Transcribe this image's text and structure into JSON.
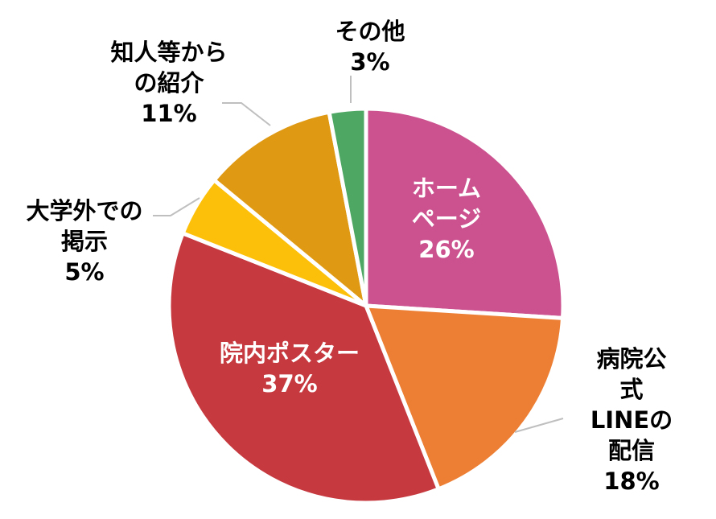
{
  "chart_data": {
    "type": "pie",
    "categories": [
      "ホーム\nページ",
      "病院公式\nLINEの配信",
      "院内ポスター",
      "大学外での\n掲示",
      "知人等から\nの紹介",
      "その他"
    ],
    "values": [
      26,
      18,
      37,
      5,
      11,
      3
    ],
    "value_labels": [
      "26%",
      "18%",
      "37%",
      "5%",
      "11%",
      "3%"
    ],
    "colors": [
      "#cb528f",
      "#ec7f34",
      "#c6393f",
      "#fdc00a",
      "#df9913",
      "#4ea763"
    ]
  }
}
